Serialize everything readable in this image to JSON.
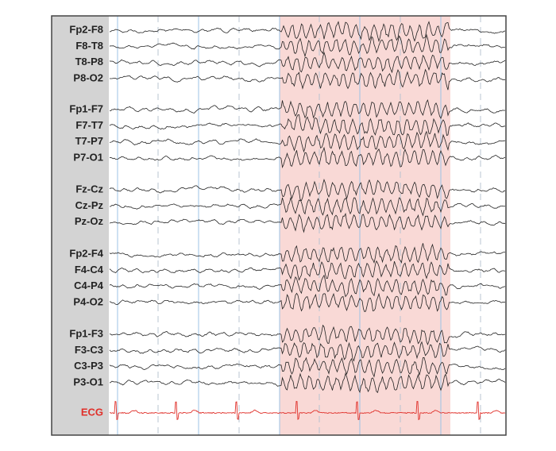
{
  "montage": {
    "groups": [
      {
        "channels": [
          "Fp2-F8",
          "F8-T8",
          "T8-P8",
          "P8-O2"
        ]
      },
      {
        "channels": [
          "Fp1-F7",
          "F7-T7",
          "T7-P7",
          "P7-O1"
        ]
      },
      {
        "channels": [
          "Fz-Cz",
          "Cz-Pz",
          "Pz-Oz"
        ]
      },
      {
        "channels": [
          "Fp2-F4",
          "F4-C4",
          "C4-P4",
          "P4-O2"
        ]
      },
      {
        "channels": [
          "Fp1-F3",
          "F3-C3",
          "C3-P3",
          "P3-O1"
        ]
      }
    ],
    "ecg": "ECG"
  }
}
